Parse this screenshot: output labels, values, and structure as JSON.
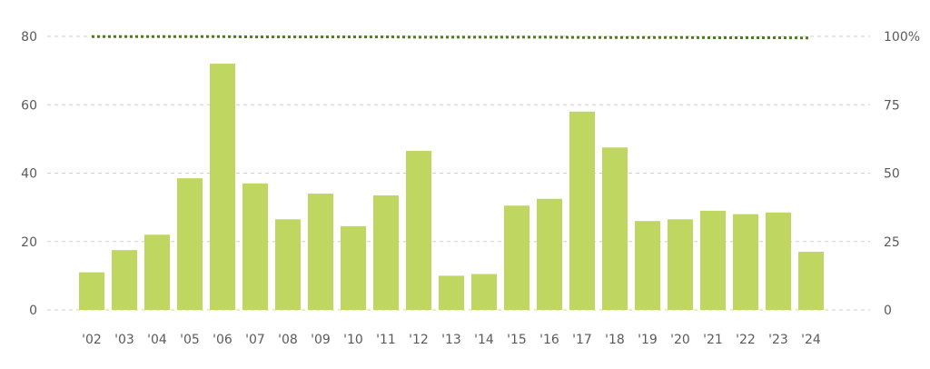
{
  "chart_data": {
    "type": "bar",
    "categories": [
      "'02",
      "'03",
      "'04",
      "'05",
      "'06",
      "'07",
      "'08",
      "'09",
      "'10",
      "'11",
      "'12",
      "'13",
      "'14",
      "'15",
      "'16",
      "'17",
      "'18",
      "'19",
      "'20",
      "'21",
      "'22",
      "'23",
      "'24"
    ],
    "series": [
      {
        "type": "bar",
        "axis": "left",
        "color": "#bfd760",
        "values": [
          11,
          17.5,
          22,
          38.5,
          72,
          37,
          26.5,
          34,
          24.5,
          33.5,
          46.5,
          10,
          10.5,
          30.5,
          32.5,
          58,
          47.5,
          26,
          26.5,
          29,
          28,
          28.5,
          17
        ]
      },
      {
        "type": "line",
        "axis": "right",
        "color": "#4f7a1f",
        "style": "dotted",
        "values": [
          99.9,
          99.9,
          99.9,
          99.9,
          99.9,
          99.8,
          99.8,
          99.8,
          99.8,
          99.8,
          99.7,
          99.7,
          99.7,
          99.7,
          99.7,
          99.6,
          99.6,
          99.6,
          99.6,
          99.5,
          99.5,
          99.5,
          99.4
        ]
      }
    ],
    "y_left": {
      "min": 0,
      "max": 80,
      "ticks": [
        "0",
        "20",
        "40",
        "60",
        "80"
      ]
    },
    "y_right": {
      "min": 0,
      "max": 100,
      "ticks": [
        "0",
        "25",
        "50",
        "75",
        "100%"
      ]
    },
    "grid": true,
    "title": "",
    "xlabel": "",
    "ylabel": ""
  }
}
